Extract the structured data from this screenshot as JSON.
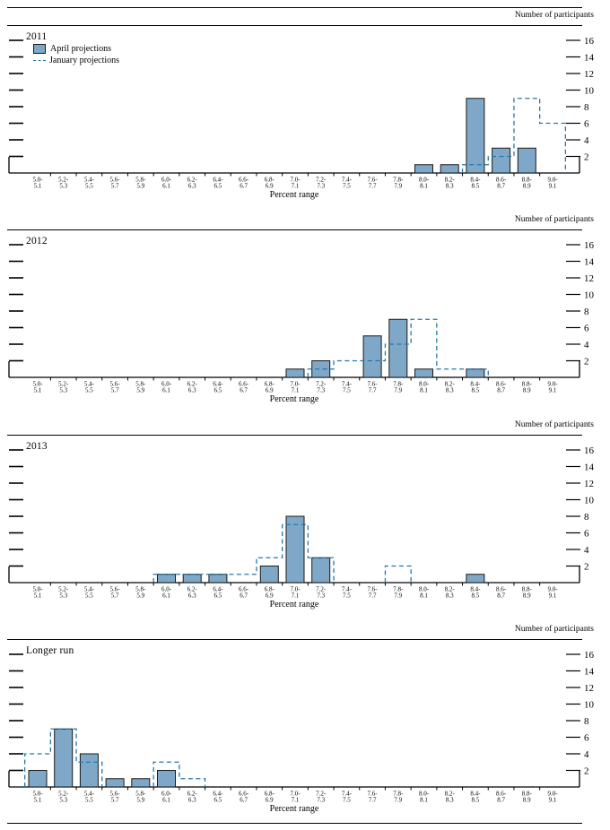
{
  "chart_data": {
    "type": "bar",
    "categories": [
      "5.0-5.1",
      "5.2-5.3",
      "5.4-5.5",
      "5.6-5.7",
      "5.8-5.9",
      "6.0-6.1",
      "6.2-6.3",
      "6.4-6.5",
      "6.6-6.7",
      "6.8-6.9",
      "7.0-7.1",
      "7.2-7.3",
      "7.4-7.5",
      "7.6-7.7",
      "7.8-7.9",
      "8.0-8.1",
      "8.2-8.3",
      "8.4-8.5",
      "8.6-8.7",
      "8.8-8.9",
      "9.0-9.1"
    ],
    "xlabel": "Percent range",
    "ylabel": "Number of participants",
    "ylim": [
      0,
      17
    ],
    "yticks": [
      2,
      4,
      6,
      8,
      10,
      12,
      14,
      16
    ],
    "grid": false,
    "legend": {
      "april": "April projections",
      "january": "January projections",
      "position": "top-left-first-panel"
    },
    "colors": {
      "april_fill": "#7FA8C8",
      "april_stroke": "#1a1a1a",
      "january_line": "#2577A9"
    },
    "panels": [
      {
        "title": "2011",
        "series": [
          {
            "name": "April projections",
            "values": [
              0,
              0,
              0,
              0,
              0,
              0,
              0,
              0,
              0,
              0,
              0,
              0,
              0,
              0,
              0,
              1,
              1,
              9,
              3,
              3,
              0
            ]
          },
          {
            "name": "January projections",
            "values": [
              0,
              0,
              0,
              0,
              0,
              0,
              0,
              0,
              0,
              0,
              0,
              0,
              0,
              0,
              0,
              0,
              0,
              1,
              2,
              9,
              6
            ]
          }
        ]
      },
      {
        "title": "2012",
        "series": [
          {
            "name": "April projections",
            "values": [
              0,
              0,
              0,
              0,
              0,
              0,
              0,
              0,
              0,
              0,
              1,
              2,
              0,
              5,
              7,
              1,
              0,
              1,
              0,
              0,
              0
            ]
          },
          {
            "name": "January projections",
            "values": [
              0,
              0,
              0,
              0,
              0,
              0,
              0,
              0,
              0,
              0,
              0,
              1,
              2,
              2,
              4,
              7,
              1,
              1,
              0,
              0,
              0
            ]
          }
        ]
      },
      {
        "title": "2013",
        "series": [
          {
            "name": "April projections",
            "values": [
              0,
              0,
              0,
              0,
              0,
              1,
              1,
              1,
              0,
              2,
              8,
              3,
              0,
              0,
              0,
              0,
              0,
              1,
              0,
              0,
              0
            ]
          },
          {
            "name": "January projections",
            "values": [
              0,
              0,
              0,
              0,
              0,
              1,
              1,
              1,
              1,
              3,
              7,
              3,
              0,
              0,
              2,
              0,
              0,
              0,
              0,
              0,
              0
            ]
          }
        ]
      },
      {
        "title": "Longer run",
        "series": [
          {
            "name": "April projections",
            "values": [
              2,
              7,
              4,
              1,
              1,
              2,
              0,
              0,
              0,
              0,
              0,
              0,
              0,
              0,
              0,
              0,
              0,
              0,
              0,
              0,
              0
            ]
          },
          {
            "name": "January projections",
            "values": [
              4,
              7,
              3,
              0,
              0,
              3,
              1,
              0,
              0,
              0,
              0,
              0,
              0,
              0,
              0,
              0,
              0,
              0,
              0,
              0,
              0
            ]
          }
        ]
      }
    ]
  }
}
